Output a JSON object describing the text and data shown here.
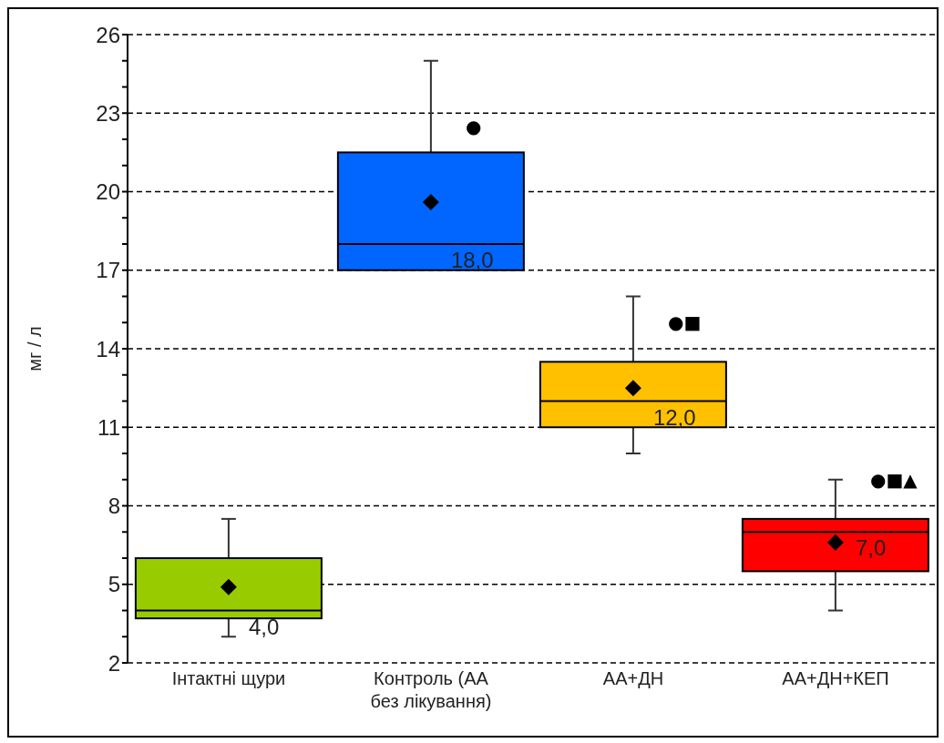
{
  "chart_data": {
    "type": "box",
    "ylabel": "мг / л",
    "categories": [
      "Інтактні щури",
      "Контроль (АА без лікування)",
      "АА+ДН",
      "АА+ДН+КЕП"
    ],
    "colors": [
      "#99cc00",
      "#0066ff",
      "#ffc000",
      "#ff0000"
    ],
    "boxes": [
      {
        "low": 3,
        "q1": 3.7,
        "median": 4,
        "q3": 6,
        "high": 7.5,
        "mean": 4.9
      },
      {
        "low": 17,
        "q1": 17,
        "median": 18,
        "q3": 21.5,
        "high": 25,
        "mean": 19.6
      },
      {
        "low": 10,
        "q1": 11,
        "median": 12,
        "q3": 13.5,
        "high": 16,
        "mean": 12.5
      },
      {
        "low": 4,
        "q1": 5.5,
        "median": 7,
        "q3": 7.5,
        "high": 9,
        "mean": 6.6
      }
    ],
    "value_labels": [
      "4,0",
      "18,0",
      "12,0",
      "7,0"
    ],
    "ylim": [
      2,
      26
    ],
    "yticks": [
      2,
      {
        "value": 3,
        "label": null
      },
      {
        "value": 4,
        "label": null
      },
      5,
      {
        "value": 6,
        "label": null
      },
      {
        "value": 7,
        "label": null
      },
      8,
      {
        "value": 9,
        "label": null
      },
      {
        "value": 10,
        "label": null
      },
      11,
      {
        "value": 12,
        "label": null
      },
      {
        "value": 13,
        "label": null
      },
      14,
      {
        "value": 15,
        "label": null
      },
      {
        "value": 16,
        "label": null
      },
      17,
      {
        "value": 18,
        "label": null
      },
      {
        "value": 19,
        "label": null
      },
      20,
      {
        "value": 21,
        "label": null
      },
      {
        "value": 22,
        "label": null
      },
      23,
      {
        "value": 24,
        "label": null
      },
      {
        "value": 25,
        "label": null
      },
      26
    ],
    "grid": "y",
    "annotations": [
      {
        "text": "●",
        "x": "Контроль (АА без лікування)",
        "y": 22.5
      },
      {
        "text": "●■",
        "x": "АА+ДН",
        "y": 15
      },
      {
        "text": "●■▲",
        "x": "АА+ДН+КЕП",
        "y": 9
      }
    ]
  }
}
